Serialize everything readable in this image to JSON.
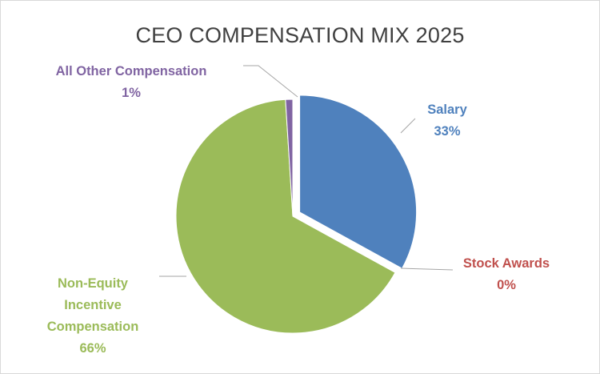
{
  "chart_data": {
    "type": "pie",
    "title": "CEO COMPENSATION MIX 2025",
    "slices": [
      {
        "name": "Salary",
        "value": 33,
        "label": "33%",
        "color": "#4F81BD"
      },
      {
        "name": "Stock Awards",
        "value": 0,
        "label": "0%",
        "color": "#C0504D"
      },
      {
        "name": "Non-Equity Incentive Compensation",
        "label_lines": [
          "Non-Equity",
          "Incentive",
          "Compensation"
        ],
        "value": 66,
        "label": "66%",
        "color": "#9BBB59"
      },
      {
        "name": "All Other Compensation",
        "value": 1,
        "label": "1%",
        "color": "#8064A2"
      }
    ]
  }
}
